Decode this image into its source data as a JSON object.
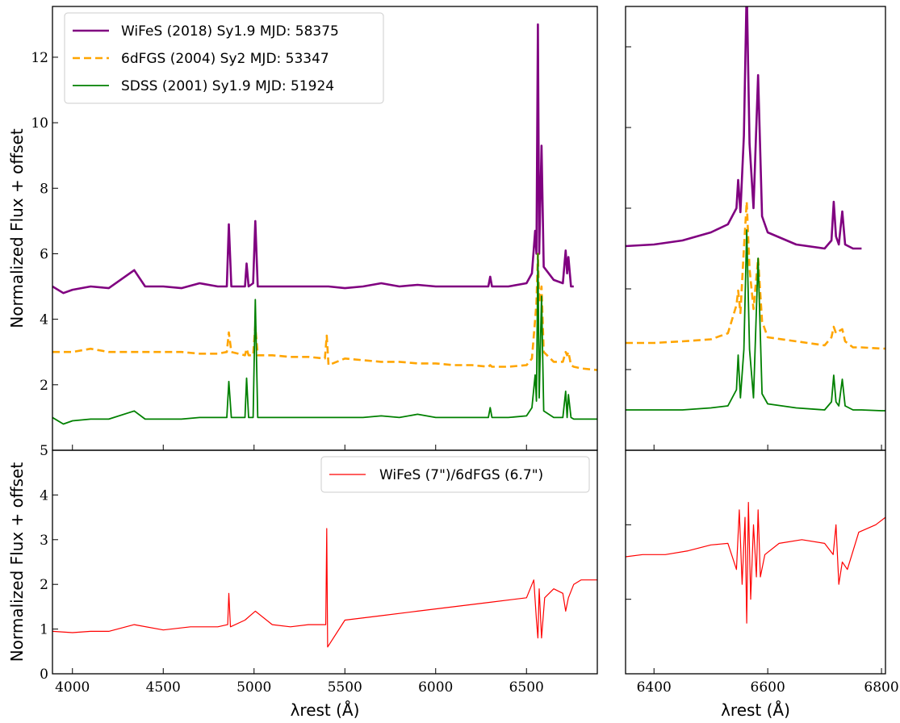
{
  "chart_data": [
    {
      "type": "line",
      "ylabel": "Normalized Flux + offset",
      "legend": "upper left",
      "show_xtick_labels": false,
      "xlim": [
        3890,
        6890
      ],
      "ylim": [
        0,
        13.55
      ],
      "xticks": [
        4000,
        4500,
        5000,
        5500,
        6000,
        6500
      ],
      "yticks": [
        2,
        4,
        6,
        8,
        10,
        12
      ],
      "x": [
        3890,
        3950,
        4000,
        4100,
        4200,
        4340,
        4400,
        4500,
        4600,
        4700,
        4800,
        4850,
        4861,
        4875,
        4950,
        4959,
        4970,
        4995,
        5007,
        5020,
        5100,
        5200,
        5300,
        5390,
        5400,
        5410,
        5500,
        5600,
        5700,
        5800,
        5900,
        6000,
        6100,
        6200,
        6290,
        6300,
        6310,
        6400,
        6500,
        6530,
        6548,
        6555,
        6563,
        6570,
        6583,
        6595,
        6650,
        6700,
        6716,
        6724,
        6731,
        6745,
        6760,
        6800,
        6890
      ],
      "series": [
        {
          "name": "WiFeS (2018) Sy1.9 MJD: 58375",
          "color": "#800080",
          "style": "solid",
          "width": 2.6,
          "values": [
            5.0,
            4.8,
            4.9,
            5.0,
            4.95,
            5.5,
            5.0,
            5.0,
            4.95,
            5.1,
            5.0,
            5.0,
            6.9,
            5.0,
            5.0,
            5.7,
            5.0,
            5.1,
            7.0,
            5.0,
            5.0,
            5.0,
            5.0,
            5.0,
            5.0,
            5.0,
            4.95,
            5.0,
            5.1,
            5.0,
            5.05,
            5.0,
            5.0,
            5.0,
            5.0,
            5.3,
            5.0,
            5.0,
            5.1,
            5.4,
            6.7,
            6.0,
            13.0,
            6.0,
            9.3,
            5.6,
            5.2,
            5.1,
            6.1,
            5.4,
            5.9,
            5.0,
            5.0,
            null,
            null
          ]
        },
        {
          "name": "6dFGS (2004) Sy2 MJD: 53347",
          "color": "#ffa500",
          "style": "dashed",
          "width": 2.6,
          "values": [
            3.0,
            3.0,
            3.0,
            3.1,
            3.0,
            3.0,
            3.0,
            3.0,
            3.0,
            2.95,
            2.95,
            3.0,
            3.6,
            3.0,
            2.9,
            3.1,
            2.9,
            2.9,
            3.8,
            2.9,
            2.9,
            2.85,
            2.85,
            2.8,
            3.5,
            2.6,
            2.8,
            2.75,
            2.7,
            2.7,
            2.65,
            2.65,
            2.6,
            2.6,
            2.55,
            2.6,
            2.55,
            2.55,
            2.6,
            2.8,
            4.0,
            4.5,
            6.0,
            4.5,
            5.0,
            3.0,
            2.7,
            2.7,
            3.0,
            2.9,
            3.0,
            2.6,
            2.55,
            2.5,
            2.45
          ]
        },
        {
          "name": "SDSS (2001) Sy1.9 MJD: 51924",
          "color": "#008000",
          "style": "solid",
          "width": 1.8,
          "values": [
            1.0,
            0.8,
            0.9,
            0.95,
            0.95,
            1.2,
            0.95,
            0.95,
            0.95,
            1.0,
            1.0,
            1.0,
            2.1,
            1.0,
            1.0,
            2.2,
            1.0,
            1.0,
            4.6,
            1.0,
            1.0,
            1.0,
            1.0,
            1.0,
            1.0,
            1.0,
            1.0,
            1.0,
            1.05,
            1.0,
            1.1,
            1.0,
            1.0,
            1.0,
            1.0,
            1.3,
            1.0,
            1.0,
            1.05,
            1.3,
            2.3,
            1.5,
            6.0,
            1.6,
            4.7,
            1.2,
            1.0,
            1.0,
            1.8,
            1.0,
            1.7,
            1.0,
            0.95,
            0.95,
            0.95
          ]
        }
      ]
    },
    {
      "type": "line",
      "show_xtick_labels": false,
      "show_ytick_labels": false,
      "xlim": [
        6350,
        6807
      ],
      "ylim": [
        0,
        11
      ],
      "xticks": [
        6400,
        6600,
        6800
      ],
      "yticks": [
        2,
        4,
        6,
        8,
        10
      ],
      "x": [
        6350,
        6400,
        6450,
        6500,
        6530,
        6545,
        6548,
        6552,
        6558,
        6563,
        6568,
        6575,
        6583,
        6590,
        6600,
        6650,
        6700,
        6712,
        6716,
        6720,
        6725,
        6731,
        6736,
        6750,
        6765,
        6800,
        6807
      ],
      "series": [
        {
          "color": "#800080",
          "style": "solid",
          "width": 2.6,
          "values": [
            5.06,
            5.1,
            5.2,
            5.4,
            5.6,
            6.0,
            6.7,
            5.9,
            7.8,
            11.5,
            7.6,
            6.0,
            9.3,
            5.8,
            5.4,
            5.1,
            5.0,
            5.2,
            6.16,
            5.3,
            5.1,
            5.92,
            5.1,
            5.0,
            5.0,
            null,
            null
          ]
        },
        {
          "color": "#ffa500",
          "style": "dashed",
          "width": 2.6,
          "values": [
            2.66,
            2.66,
            2.7,
            2.75,
            2.9,
            3.6,
            3.96,
            3.4,
            5.0,
            6.16,
            4.5,
            3.5,
            4.76,
            3.2,
            2.8,
            2.7,
            2.6,
            2.8,
            3.06,
            2.9,
            2.95,
            3.0,
            2.7,
            2.55,
            2.55,
            2.52,
            2.52
          ]
        },
        {
          "color": "#008000",
          "style": "solid",
          "width": 1.8,
          "values": [
            1.0,
            1.0,
            1.0,
            1.05,
            1.1,
            1.5,
            2.36,
            1.3,
            2.5,
            5.46,
            2.5,
            1.3,
            4.76,
            1.4,
            1.15,
            1.05,
            1.0,
            1.2,
            1.86,
            1.2,
            1.1,
            1.76,
            1.1,
            1.0,
            1.0,
            0.98,
            0.98
          ]
        }
      ]
    },
    {
      "type": "line",
      "ylabel": "Normalized Flux + offset",
      "xlabel": "λrest (Å)",
      "legend": "upper right",
      "xlim": [
        3890,
        6890
      ],
      "ylim": [
        0,
        5
      ],
      "xticks": [
        4000,
        4500,
        5000,
        5500,
        6000,
        6500
      ],
      "yticks": [
        0,
        1,
        2,
        3,
        4,
        5
      ],
      "x": [
        3890,
        4000,
        4100,
        4200,
        4340,
        4500,
        4650,
        4800,
        4855,
        4861,
        4870,
        4950,
        5007,
        5100,
        5200,
        5300,
        5395,
        5400,
        5405,
        5500,
        5700,
        5900,
        6100,
        6300,
        6500,
        6540,
        6555,
        6563,
        6570,
        6583,
        6600,
        6650,
        6700,
        6716,
        6731,
        6760,
        6800,
        6890
      ],
      "series": [
        {
          "name": "WiFeS (7\")/6dFGS (6.7\")",
          "color": "#ff0000",
          "style": "solid",
          "width": 1.2,
          "values": [
            0.95,
            0.92,
            0.95,
            0.95,
            1.1,
            0.98,
            1.05,
            1.05,
            1.1,
            1.8,
            1.05,
            1.2,
            1.4,
            1.1,
            1.05,
            1.1,
            1.1,
            3.25,
            0.6,
            1.2,
            1.3,
            1.4,
            1.5,
            1.6,
            1.7,
            2.1,
            1.2,
            0.8,
            1.9,
            0.8,
            1.7,
            1.9,
            1.8,
            1.4,
            1.7,
            2.0,
            2.1,
            2.1
          ]
        }
      ]
    },
    {
      "type": "line",
      "xlabel": "λrest (Å)",
      "show_ytick_labels": false,
      "xlim": [
        6350,
        6807
      ],
      "ylim": [
        0,
        3
      ],
      "xticks": [
        6400,
        6600,
        6800
      ],
      "yticks": [
        1,
        2
      ],
      "x": [
        6350,
        6380,
        6420,
        6460,
        6500,
        6530,
        6545,
        6550,
        6555,
        6560,
        6563,
        6566,
        6570,
        6575,
        6580,
        6583,
        6587,
        6595,
        6620,
        6660,
        6700,
        6715,
        6720,
        6725,
        6731,
        6740,
        6760,
        6790,
        6807
      ],
      "series": [
        {
          "color": "#ff0000",
          "style": "solid",
          "width": 1.2,
          "values": [
            1.57,
            1.6,
            1.6,
            1.65,
            1.73,
            1.75,
            1.4,
            2.2,
            1.2,
            2.1,
            0.68,
            2.3,
            1.0,
            2.0,
            1.3,
            2.2,
            1.3,
            1.6,
            1.75,
            1.8,
            1.75,
            1.6,
            2.0,
            1.2,
            1.5,
            1.4,
            1.9,
            2.0,
            2.1
          ]
        }
      ]
    }
  ]
}
